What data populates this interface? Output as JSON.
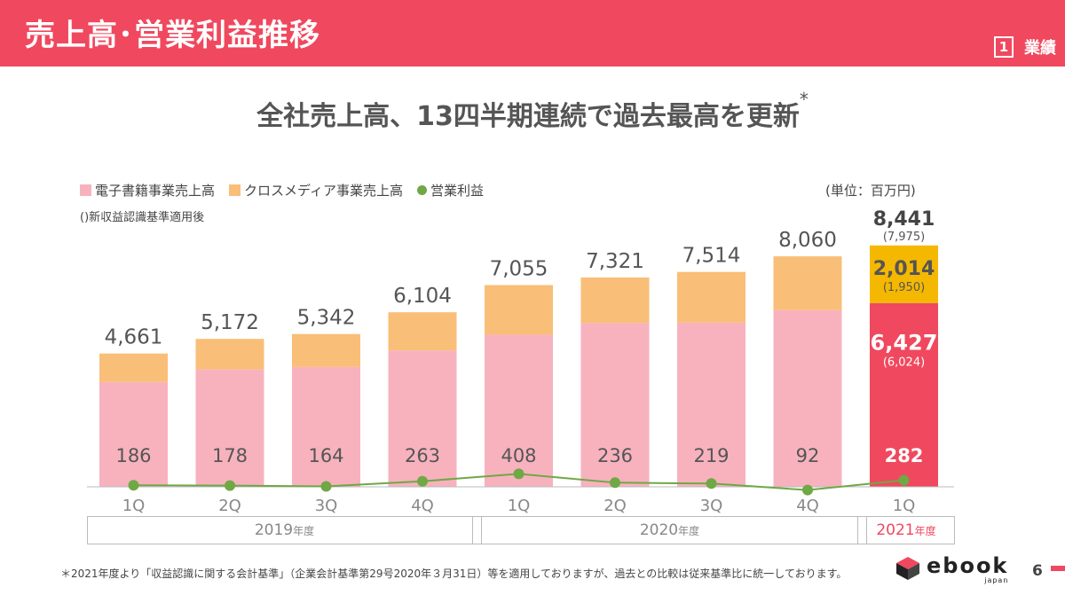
{
  "header": {
    "title": "売上高･営業利益推移",
    "section_number": "1",
    "section_label": "業績"
  },
  "subtitle": {
    "text": "全社売上高、13四半期連続で過去最高を更新",
    "mark": "*"
  },
  "legend": {
    "items": [
      {
        "label": "電子書籍事業売上高",
        "color": "#f7b2be"
      },
      {
        "label": "クロスメディア事業売上高",
        "color": "#f9be78"
      },
      {
        "label": "営業利益",
        "color": "#6fa845"
      }
    ]
  },
  "note": "()新収益認識基準適用後",
  "unit": "(単位：百万円)",
  "colors": {
    "accent": "#f0485e",
    "ebook": "#f7b2be",
    "crossmedia": "#f9be78",
    "profit": "#6fa845",
    "highlight_ebook": "#f0485e",
    "highlight_crossmedia": "#f5b800"
  },
  "chart_data": {
    "type": "bar",
    "stacked": true,
    "categories": [
      "1Q",
      "2Q",
      "3Q",
      "4Q",
      "1Q",
      "2Q",
      "3Q",
      "4Q",
      "1Q"
    ],
    "series": [
      {
        "name": "電子書籍事業売上高",
        "values": [
          3663,
          4105,
          4190,
          4770,
          5320,
          5727,
          5742,
          6179,
          6427
        ]
      },
      {
        "name": "クロスメディア事業売上高",
        "values": [
          998,
          1067,
          1152,
          1334,
          1735,
          1594,
          1772,
          1881,
          2014
        ]
      },
      {
        "name": "営業利益",
        "type": "line",
        "values": [
          186,
          178,
          164,
          263,
          408,
          236,
          219,
          92,
          282
        ]
      }
    ],
    "total_labels": [
      "4,661",
      "5,172",
      "5,342",
      "6,104",
      "7,055",
      "7,321",
      "7,514",
      "8,060",
      "8,441"
    ],
    "profit_labels": [
      "186",
      "178",
      "164",
      "263",
      "408",
      "236",
      "219",
      "92",
      "282"
    ],
    "latest": {
      "total_label": "8,441",
      "total_old": "(7,975)",
      "crossmedia_label": "2,014",
      "crossmedia_old": "(1,950)",
      "ebook_label": "6,427",
      "ebook_old": "(6,024)"
    },
    "years": [
      {
        "label": "2019",
        "suffix": "年度",
        "quarters": 4
      },
      {
        "label": "2020",
        "suffix": "年度",
        "quarters": 4
      },
      {
        "label": "2021",
        "suffix": "年度",
        "quarters": 1
      }
    ]
  },
  "footnote": "＊2021年度より「収益認識に関する会計基準」（企業会計基準第29号2020年３月31日）等を適用しておりますが、過去との比較は従来基準比に統一しております。",
  "logo": {
    "word": "ebook",
    "sub": "japan"
  },
  "page_number": "6"
}
